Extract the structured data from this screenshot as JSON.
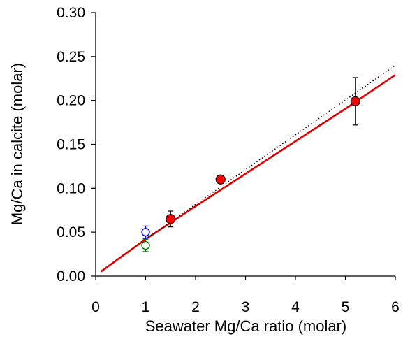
{
  "chart_data": {
    "type": "scatter",
    "xlabel": "Seawater Mg/Ca ratio (molar)",
    "ylabel": "Mg/Ca in calcite (molar)",
    "xlim": [
      0,
      6
    ],
    "ylim": [
      0,
      0.3
    ],
    "x_ticks": [
      "0",
      "1",
      "2",
      "3",
      "4",
      "5",
      "6"
    ],
    "y_ticks": [
      "0.00",
      "0.05",
      "0.10",
      "0.15",
      "0.20",
      "0.25",
      "0.30"
    ],
    "grid": false,
    "legend": "none",
    "series": [
      {
        "marker": "filled-circle",
        "color": "#ff0000",
        "points": [
          {
            "x": 1.5,
            "y": 0.065,
            "err": 0.009
          },
          {
            "x": 2.5,
            "y": 0.11,
            "err": 0.004
          },
          {
            "x": 5.2,
            "y": 0.199,
            "err": 0.027
          }
        ]
      },
      {
        "marker": "open-circle",
        "color": "#0000ff",
        "points": [
          {
            "x": 1.0,
            "y": 0.05,
            "err": 0.007
          }
        ]
      },
      {
        "marker": "open-circle",
        "color": "#008000",
        "points": [
          {
            "x": 1.0,
            "y": 0.035,
            "err": 0.007
          }
        ]
      }
    ],
    "lines": [
      {
        "style": "solid",
        "color": "#e00000",
        "points": [
          [
            0.1,
            0.005
          ],
          [
            1.0,
            0.042
          ],
          [
            2.0,
            0.0795
          ],
          [
            3.0,
            0.1165
          ],
          [
            4.0,
            0.1535
          ],
          [
            5.0,
            0.1905
          ],
          [
            6.0,
            0.229
          ]
        ]
      },
      {
        "style": "dotted",
        "color": "#000000",
        "points": [
          [
            1.0,
            0.042
          ],
          [
            6.0,
            0.24
          ]
        ]
      }
    ]
  }
}
